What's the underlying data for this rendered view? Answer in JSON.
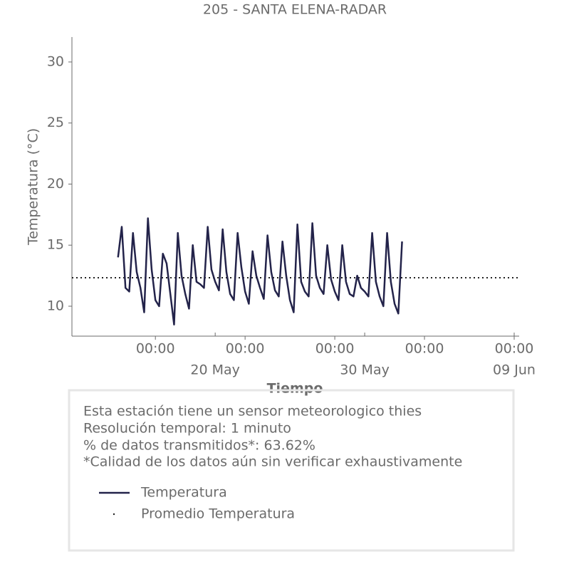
{
  "chart_data": {
    "type": "line",
    "title": "205 - SANTA ELENA-RADAR",
    "ylabel": "Temperatura (°C)",
    "xlabel": "Tiempo",
    "x": [
      "05-13 12:00",
      "05-13 18:00",
      "05-14 00:00",
      "05-14 06:00",
      "05-14 12:00",
      "05-14 18:00",
      "05-15 00:00",
      "05-15 06:00",
      "05-15 12:00",
      "05-15 18:00",
      "05-16 00:00",
      "05-16 06:00",
      "05-16 12:00",
      "05-16 18:00",
      "05-17 00:00",
      "05-17 06:00",
      "05-17 12:00",
      "05-17 18:00",
      "05-18 00:00",
      "05-18 06:00",
      "05-18 12:00",
      "05-18 18:00",
      "05-19 00:00",
      "05-19 06:00",
      "05-19 12:00",
      "05-19 18:00",
      "05-20 00:00",
      "05-20 06:00",
      "05-20 12:00",
      "05-20 18:00",
      "05-21 00:00",
      "05-21 06:00",
      "05-21 12:00",
      "05-21 18:00",
      "05-22 00:00",
      "05-22 06:00",
      "05-22 12:00",
      "05-22 18:00",
      "05-23 00:00",
      "05-23 06:00",
      "05-23 12:00",
      "05-23 18:00",
      "05-24 00:00",
      "05-24 06:00",
      "05-24 12:00",
      "05-24 18:00",
      "05-25 00:00",
      "05-25 06:00",
      "05-25 12:00",
      "05-25 18:00",
      "05-26 00:00",
      "05-26 06:00",
      "05-26 12:00",
      "05-26 18:00",
      "05-27 00:00",
      "05-27 06:00",
      "05-27 12:00",
      "05-27 18:00",
      "05-28 00:00",
      "05-28 06:00",
      "05-28 12:00",
      "05-28 18:00",
      "05-29 00:00",
      "05-29 06:00",
      "05-29 12:00",
      "05-29 18:00",
      "05-30 00:00",
      "05-30 06:00",
      "05-30 12:00",
      "05-30 18:00",
      "05-31 00:00",
      "05-31 06:00",
      "05-31 12:00",
      "05-31 18:00",
      "06-01 00:00",
      "06-01 06:00",
      "06-01 12:00"
    ],
    "series": [
      {
        "name": "Temperatura",
        "color": "#23234a",
        "values": [
          14.0,
          16.5,
          11.5,
          11.2,
          16.0,
          12.8,
          11.5,
          9.5,
          17.2,
          13.0,
          10.5,
          10.0,
          14.3,
          13.5,
          11.0,
          8.5,
          16.0,
          12.5,
          11.0,
          9.8,
          15.0,
          12.0,
          11.8,
          11.5,
          16.5,
          13.0,
          12.0,
          11.3,
          16.3,
          12.8,
          11.0,
          10.5,
          16.0,
          13.2,
          11.2,
          10.2,
          14.5,
          12.5,
          11.5,
          10.6,
          15.8,
          12.8,
          11.3,
          10.8,
          15.3,
          12.5,
          10.5,
          9.5,
          16.7,
          12.0,
          11.2,
          10.8,
          16.8,
          12.5,
          11.5,
          11.0,
          15.0,
          12.2,
          11.2,
          10.5,
          15.0,
          12.0,
          11.0,
          10.8,
          12.5,
          11.5,
          11.2,
          10.8,
          16.0,
          12.0,
          10.8,
          10.0,
          16.0,
          12.0,
          10.2,
          9.4,
          15.3
        ]
      }
    ],
    "mean_line": {
      "name": "Promedio Temperatura",
      "value": 12.33,
      "color": "#222222"
    },
    "xlim": [
      "05-10 10:00",
      "06-09 08:00"
    ],
    "xticks": [
      {
        "value": "05-16 00:00",
        "label": "00:00"
      },
      {
        "value": "05-22 00:00",
        "label": "00:00"
      },
      {
        "value": "05-28 00:00",
        "label": "00:00"
      },
      {
        "value": "06-03 00:00",
        "label": "00:00"
      },
      {
        "value": "06-09 00:00",
        "label": "00:00"
      }
    ],
    "xticks_minor": [
      {
        "value": "05-20 00:00",
        "label": "20 May"
      },
      {
        "value": "05-30 00:00",
        "label": "30 May"
      },
      {
        "value": "06-09 00:00",
        "label": "09 Jun"
      }
    ],
    "ylim": [
      7.55,
      32.04
    ],
    "yticks": [
      10,
      15,
      20,
      25,
      30
    ],
    "grid": false
  },
  "info": [
    "Esta estación tiene un sensor meteorologico thies",
    "Resolución temporal: 1 minuto",
    "% de datos transmitidos*: 63.62%",
    "*Calidad de los datos aún sin verificar exhaustivamente"
  ]
}
